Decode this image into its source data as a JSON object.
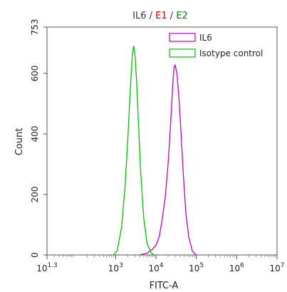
{
  "chart_data": {
    "type": "line",
    "title_parts": [
      {
        "text": "IL6",
        "color": "#333333"
      },
      {
        "text": " / ",
        "color": "#333333"
      },
      {
        "text": "E1",
        "color": "#cc0000"
      },
      {
        "text": " / ",
        "color": "#333333"
      },
      {
        "text": "E2",
        "color": "#008000"
      }
    ],
    "xlabel": "FITC-A",
    "ylabel": "Count",
    "x_scale": "log",
    "xlim": [
      20,
      10000000
    ],
    "ylim": [
      0,
      753
    ],
    "x_ticks": [
      {
        "value": 20,
        "base": "10",
        "exp": "1.3"
      },
      {
        "value": 1000,
        "base": "10",
        "exp": "3"
      },
      {
        "value": 10000,
        "base": "10",
        "exp": "4"
      },
      {
        "value": 100000,
        "base": "10",
        "exp": "5"
      },
      {
        "value": 1000000,
        "base": "10",
        "exp": "6"
      },
      {
        "value": 10000000,
        "base": "10",
        "exp": "7"
      }
    ],
    "y_ticks": [
      {
        "value": 0,
        "label": "0"
      },
      {
        "value": 200,
        "label": "200"
      },
      {
        "value": 400,
        "label": "400"
      },
      {
        "value": 600,
        "label": "600"
      },
      {
        "value": 753,
        "label": "753"
      }
    ],
    "legend_position": "top-right",
    "series": [
      {
        "name": "IL6",
        "color": "#c000c0",
        "points": [
          [
            4000,
            0
          ],
          [
            6000,
            6
          ],
          [
            8000,
            18
          ],
          [
            10000,
            32
          ],
          [
            12000,
            60
          ],
          [
            14000,
            110
          ],
          [
            17000,
            190
          ],
          [
            20000,
            300
          ],
          [
            23000,
            430
          ],
          [
            26000,
            560
          ],
          [
            28000,
            620
          ],
          [
            30000,
            628
          ],
          [
            33000,
            600
          ],
          [
            37000,
            520
          ],
          [
            42000,
            400
          ],
          [
            48000,
            260
          ],
          [
            55000,
            140
          ],
          [
            65000,
            60
          ],
          [
            80000,
            12
          ],
          [
            100000,
            0
          ]
        ]
      },
      {
        "name": "Isotype control",
        "color": "#00c000",
        "points": [
          [
            900,
            0
          ],
          [
            1100,
            15
          ],
          [
            1400,
            90
          ],
          [
            1700,
            220
          ],
          [
            2000,
            380
          ],
          [
            2300,
            540
          ],
          [
            2600,
            660
          ],
          [
            2800,
            690
          ],
          [
            3000,
            670
          ],
          [
            3300,
            580
          ],
          [
            3700,
            430
          ],
          [
            4200,
            270
          ],
          [
            5000,
            120
          ],
          [
            6000,
            40
          ],
          [
            7500,
            8
          ],
          [
            9000,
            0
          ]
        ]
      }
    ]
  }
}
